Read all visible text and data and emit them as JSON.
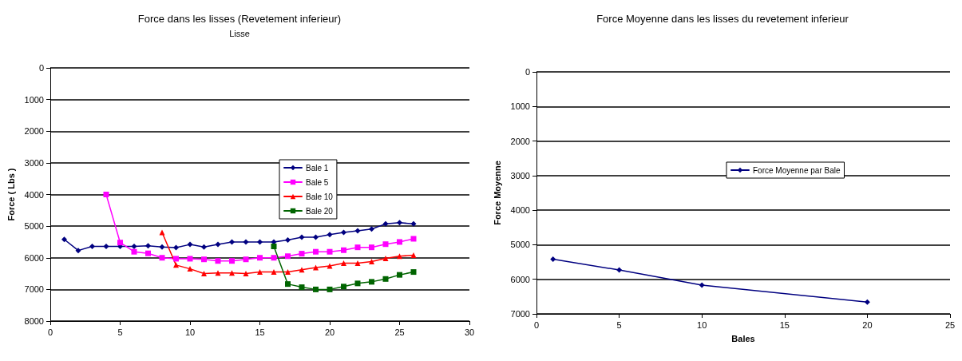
{
  "chart_data": [
    {
      "type": "line",
      "title": "Force dans les lisses (Revetement inferieur)",
      "subtitle": "Lisse",
      "ylabel": "Force ( Lbs )",
      "xlim": [
        0,
        30
      ],
      "xticks": [
        0,
        5,
        10,
        15,
        20,
        25,
        30
      ],
      "ylim": [
        8000,
        0
      ],
      "yticks": [
        0,
        1000,
        2000,
        3000,
        4000,
        5000,
        6000,
        7000,
        8000
      ],
      "grid": "y",
      "legend": "right",
      "series": [
        {
          "name": "Bale 1",
          "color": "#000080",
          "marker": "diamond",
          "x": [
            1,
            2,
            3,
            4,
            5,
            6,
            7,
            8,
            9,
            10,
            11,
            12,
            13,
            14,
            15,
            16,
            17,
            18,
            19,
            20,
            21,
            22,
            23,
            24,
            25,
            26
          ],
          "values": [
            5420,
            5770,
            5640,
            5640,
            5640,
            5640,
            5620,
            5660,
            5680,
            5580,
            5660,
            5580,
            5500,
            5500,
            5500,
            5500,
            5440,
            5350,
            5350,
            5270,
            5200,
            5150,
            5090,
            4930,
            4890,
            4930
          ]
        },
        {
          "name": "Bale 5",
          "color": "#ff00ff",
          "marker": "square",
          "x": [
            4,
            5,
            6,
            7,
            8,
            9,
            10,
            11,
            12,
            13,
            14,
            15,
            16,
            17,
            18,
            19,
            20,
            21,
            22,
            23,
            24,
            25,
            26
          ],
          "values": [
            4000,
            5520,
            5810,
            5860,
            6000,
            6030,
            6030,
            6050,
            6100,
            6100,
            6050,
            6000,
            6000,
            5950,
            5870,
            5810,
            5810,
            5760,
            5670,
            5670,
            5570,
            5500,
            5400
          ]
        },
        {
          "name": "Bale 10",
          "color": "#ff0000",
          "marker": "triangle",
          "x": [
            8,
            9,
            10,
            11,
            12,
            13,
            14,
            15,
            16,
            17,
            18,
            19,
            20,
            21,
            22,
            23,
            24,
            25,
            26
          ],
          "values": [
            5200,
            6230,
            6350,
            6500,
            6480,
            6480,
            6500,
            6450,
            6450,
            6450,
            6380,
            6310,
            6260,
            6170,
            6170,
            6120,
            6020,
            5950,
            5920
          ]
        },
        {
          "name": "Bale 20",
          "color": "#006400",
          "marker": "square",
          "x": [
            16,
            17,
            18,
            19,
            20,
            21,
            22,
            23,
            24,
            25,
            26
          ],
          "values": [
            5640,
            6830,
            6930,
            7000,
            7000,
            6910,
            6810,
            6760,
            6670,
            6540,
            6450
          ]
        }
      ]
    },
    {
      "type": "line",
      "title": "Force Moyenne dans les lisses du revetement inferieur",
      "xlabel": "Bales",
      "ylabel": "Force Moyenne",
      "xlim": [
        0,
        25
      ],
      "xticks": [
        0,
        5,
        10,
        15,
        20,
        25
      ],
      "ylim": [
        7000,
        0
      ],
      "yticks": [
        0,
        1000,
        2000,
        3000,
        4000,
        5000,
        6000,
        7000
      ],
      "grid": "y",
      "legend": "right",
      "series": [
        {
          "name": "Force Moyenne par Bale",
          "color": "#000080",
          "marker": "diamond",
          "x": [
            1,
            5,
            10,
            20
          ],
          "values": [
            5420,
            5730,
            6170,
            6660
          ]
        }
      ]
    }
  ]
}
